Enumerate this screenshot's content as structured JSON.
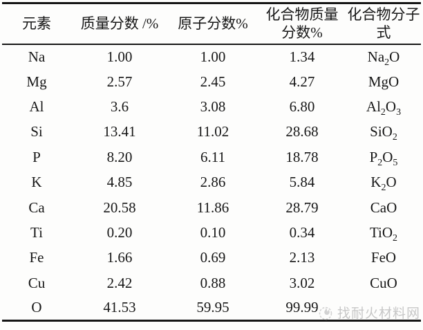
{
  "table": {
    "headers": [
      "元素",
      "质量分数 /%",
      "原子分数%",
      "化合物质量\n分数%",
      "化合物分子\n式"
    ],
    "rows": [
      {
        "element": "Na",
        "mass_pct": "1.00",
        "atomic_pct": "1.00",
        "compound_mass_pct": "1.34",
        "formula": "Na|2|O"
      },
      {
        "element": "Mg",
        "mass_pct": "2.57",
        "atomic_pct": "2.45",
        "compound_mass_pct": "4.27",
        "formula": "MgO"
      },
      {
        "element": "Al",
        "mass_pct": "3.6",
        "atomic_pct": "3.08",
        "compound_mass_pct": "6.80",
        "formula": "Al|2|O|3"
      },
      {
        "element": "Si",
        "mass_pct": "13.41",
        "atomic_pct": "11.02",
        "compound_mass_pct": "28.68",
        "formula": "SiO|2"
      },
      {
        "element": "P",
        "mass_pct": "8.20",
        "atomic_pct": "6.11",
        "compound_mass_pct": "18.78",
        "formula": "P|2|O|5"
      },
      {
        "element": "K",
        "mass_pct": "4.85",
        "atomic_pct": "2.86",
        "compound_mass_pct": "5.84",
        "formula": "K|2|O"
      },
      {
        "element": "Ca",
        "mass_pct": "20.58",
        "atomic_pct": "11.86",
        "compound_mass_pct": "28.79",
        "formula": "CaO"
      },
      {
        "element": "Ti",
        "mass_pct": "0.20",
        "atomic_pct": "0.10",
        "compound_mass_pct": "0.34",
        "formula": "TiO|2"
      },
      {
        "element": "Fe",
        "mass_pct": "1.66",
        "atomic_pct": "0.69",
        "compound_mass_pct": "2.13",
        "formula": "FeO"
      },
      {
        "element": "Cu",
        "mass_pct": "2.42",
        "atomic_pct": "0.88",
        "compound_mass_pct": "3.02",
        "formula": "CuO"
      },
      {
        "element": "O",
        "mass_pct": "41.53",
        "atomic_pct": "59.95",
        "compound_mass_pct": "99.99",
        "formula": ""
      }
    ],
    "border_color": "#151515"
  },
  "watermark": {
    "text": "找耐火材料网",
    "icon": "flame-logo-icon",
    "color": "#c7c7c7"
  }
}
